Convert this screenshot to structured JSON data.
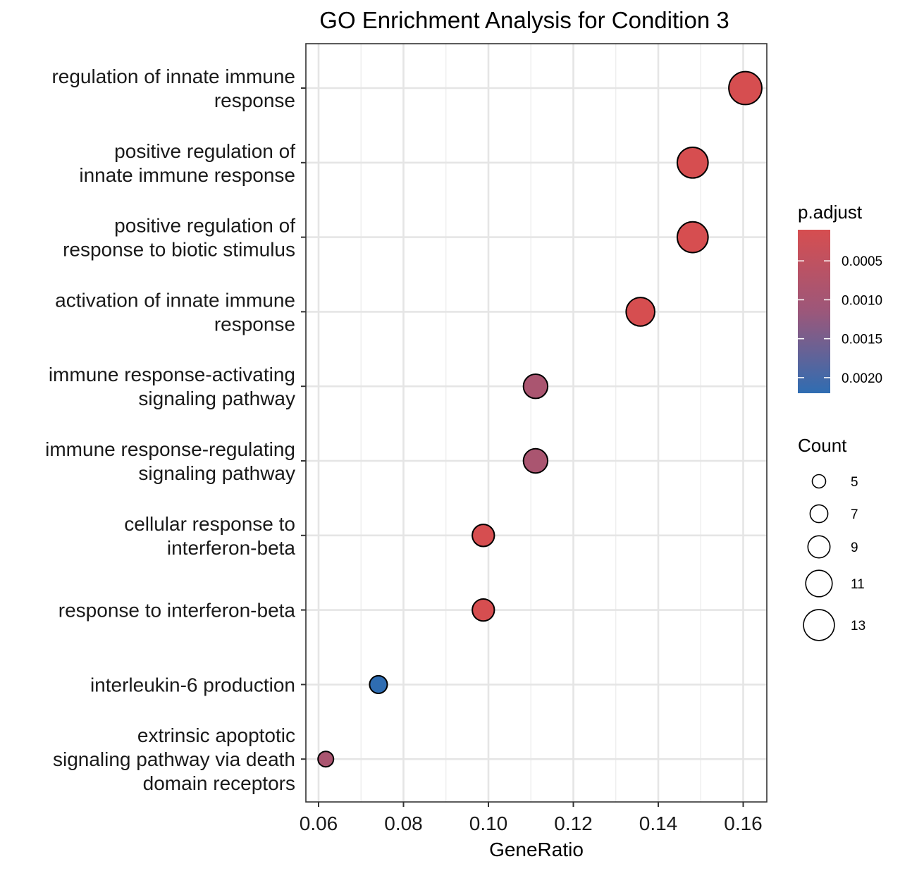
{
  "chart_data": {
    "type": "scatter",
    "title": "GO Enrichment Analysis for Condition 3",
    "xlabel": "GeneRatio",
    "ylabel": "",
    "xlim": [
      0.057,
      0.1635
    ],
    "xticks": [
      "0.06",
      "0.08",
      "0.10",
      "0.12",
      "0.14",
      "0.16"
    ],
    "xtick_values": [
      0.06,
      0.08,
      0.1,
      0.12,
      0.14,
      0.16
    ],
    "grid": true,
    "legend_position": "right",
    "points": [
      {
        "label": "regulation of innate immune\nresponse",
        "x": 0.1605,
        "count": 13,
        "p_adjust": 0.0001
      },
      {
        "label": "positive regulation of\ninnate immune response",
        "x": 0.1481,
        "count": 12,
        "p_adjust": 0.0001
      },
      {
        "label": "positive regulation of\nresponse to biotic stimulus",
        "x": 0.1481,
        "count": 12,
        "p_adjust": 0.0001
      },
      {
        "label": "activation of innate immune\nresponse",
        "x": 0.1358,
        "count": 11,
        "p_adjust": 0.0001
      },
      {
        "label": "immune response-activating\nsignaling pathway",
        "x": 0.1111,
        "count": 9,
        "p_adjust": 0.0009
      },
      {
        "label": "immune response-regulating\nsignaling pathway",
        "x": 0.1111,
        "count": 9,
        "p_adjust": 0.0009
      },
      {
        "label": "cellular response to\ninterferon-beta",
        "x": 0.0988,
        "count": 8,
        "p_adjust": 0.0001
      },
      {
        "label": "response to interferon-beta",
        "x": 0.0988,
        "count": 8,
        "p_adjust": 0.0001
      },
      {
        "label": "interleukin-6 production",
        "x": 0.0741,
        "count": 6,
        "p_adjust": 0.0022
      },
      {
        "label": "extrinsic apoptotic\nsignaling pathway via death\ndomain receptors",
        "x": 0.0617,
        "count": 5,
        "p_adjust": 0.0009
      }
    ],
    "color_legend": {
      "title": "p.adjust",
      "range": [
        0.0001,
        0.0022
      ],
      "low_color": "#d64e50",
      "high_color": "#2f6db2",
      "ticks": [
        "0.0005",
        "0.0010",
        "0.0015",
        "0.0020"
      ],
      "tick_values": [
        0.0005,
        0.001,
        0.0015,
        0.002
      ]
    },
    "size_legend": {
      "title": "Count",
      "range": [
        5,
        13
      ],
      "values": [
        5,
        7,
        9,
        11,
        13
      ]
    }
  }
}
